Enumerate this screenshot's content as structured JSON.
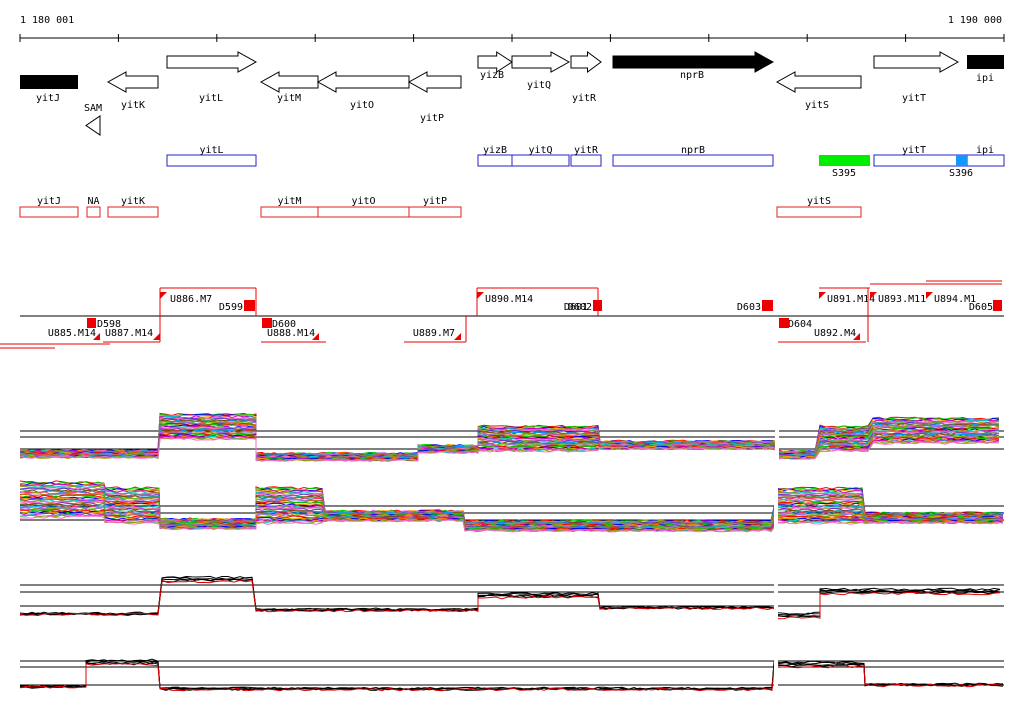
{
  "ruler": {
    "start_label": "1 180 001",
    "end_label": "1 190 000"
  },
  "colors": {
    "gene_fill_dark": "#000000",
    "gene_fill_light": "#ffffff",
    "transcript_blue": "#2222cc",
    "transcript_red": "#dd2222",
    "segment_green": "#00ee00",
    "segment_cyan": "#1199ff",
    "marker_red": "#ee0000",
    "profile_black": "#000000",
    "profile_red": "#dd0000"
  },
  "genes": [
    {
      "label": "yitJ",
      "strand": "+",
      "filled": true
    },
    {
      "label": "yitK",
      "strand": "-",
      "filled": false
    },
    {
      "label": "yitL",
      "strand": "+",
      "filled": false
    },
    {
      "label": "yitM",
      "strand": "-",
      "filled": false
    },
    {
      "label": "yitO",
      "strand": "-",
      "filled": false
    },
    {
      "label": "yitP",
      "strand": "-",
      "filled": false
    },
    {
      "label": "yizB",
      "strand": "+",
      "filled": false
    },
    {
      "label": "yitQ",
      "strand": "+",
      "filled": false
    },
    {
      "label": "yitR",
      "strand": "+",
      "filled": false
    },
    {
      "label": "nprB",
      "strand": "+",
      "filled": true
    },
    {
      "label": "yitS",
      "strand": "-",
      "filled": false
    },
    {
      "label": "yitT",
      "strand": "+",
      "filled": false
    },
    {
      "label": "ipi",
      "strand": "+",
      "filled": true
    }
  ],
  "sam_label": "SAM",
  "plus_transcripts": [
    "yitL",
    "yizB",
    "yitQ",
    "yitR",
    "nprB",
    "yitT",
    "ipi"
  ],
  "segment_labels": [
    "S395",
    "S396"
  ],
  "minus_transcripts": [
    "yitJ",
    "NA",
    "yitK",
    "yitM",
    "yitO",
    "yitP",
    "yitS"
  ],
  "upper_markers": [
    "U886.M7",
    "D599",
    "U890.M14",
    "D601",
    "D602",
    "D603",
    "U891.M14",
    "U893.M11",
    "U894.M1",
    "D605"
  ],
  "lower_markers": [
    "U885.M14",
    "D598",
    "U887.M14",
    "D600",
    "U888.M14",
    "U889.M7",
    "D604",
    "U892.M4"
  ]
}
